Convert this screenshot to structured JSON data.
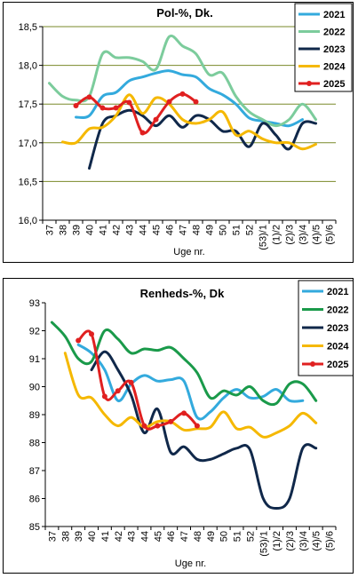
{
  "chart_data": [
    {
      "type": "line",
      "title": "Pol-%, Dk.",
      "xlabel": "Uge nr.",
      "ylabel": "",
      "ylim": [
        16.0,
        18.5
      ],
      "yticks": [
        "16,0",
        "16,5",
        "17,0",
        "17,5",
        "18,0",
        "18,5"
      ],
      "categories": [
        "37",
        "38",
        "39",
        "40",
        "41",
        "42",
        "43",
        "44",
        "45",
        "46",
        "47",
        "48",
        "49",
        "50",
        "51",
        "52",
        "(53)/1",
        "(1)/2",
        "(2)/3",
        "(3)/4",
        "(4)/5",
        "(5)/6"
      ],
      "grid": true,
      "legend": "top-right",
      "series": [
        {
          "name": "2021",
          "color": "#33aadd",
          "values": [
            null,
            null,
            17.33,
            17.35,
            17.6,
            17.65,
            17.8,
            17.85,
            17.9,
            17.93,
            17.88,
            17.85,
            17.7,
            17.62,
            17.5,
            17.32,
            17.28,
            17.25,
            17.22,
            17.3,
            null,
            null
          ]
        },
        {
          "name": "2022",
          "color": "#7ccc9c",
          "values": [
            17.77,
            17.6,
            17.55,
            17.6,
            18.15,
            18.1,
            18.1,
            18.05,
            17.95,
            18.37,
            18.25,
            18.15,
            17.88,
            17.9,
            17.6,
            17.4,
            17.3,
            17.22,
            17.3,
            17.5,
            17.3,
            null
          ]
        },
        {
          "name": "2023",
          "color": "#10284a",
          "values": [
            null,
            null,
            null,
            16.67,
            17.25,
            17.35,
            17.42,
            17.35,
            17.22,
            17.35,
            17.2,
            17.35,
            17.3,
            17.15,
            17.15,
            16.95,
            17.25,
            17.1,
            16.92,
            17.25,
            17.25,
            null
          ]
        },
        {
          "name": "2024",
          "color": "#f5b800",
          "values": [
            null,
            17.01,
            17.0,
            17.18,
            17.2,
            17.35,
            17.62,
            17.38,
            17.58,
            17.5,
            17.3,
            17.25,
            17.3,
            17.4,
            17.1,
            17.15,
            17.05,
            17.0,
            17.0,
            16.92,
            16.98,
            null
          ]
        },
        {
          "name": "2025",
          "color": "#e02020",
          "values": [
            null,
            null,
            17.48,
            17.59,
            17.45,
            17.45,
            17.52,
            17.13,
            17.3,
            17.53,
            17.63,
            17.53,
            null,
            null,
            null,
            null,
            null,
            null,
            null,
            null,
            null,
            null
          ]
        }
      ]
    },
    {
      "type": "line",
      "title": "Renheds-%, Dk",
      "xlabel": "Uge nr.",
      "ylabel": "",
      "ylim": [
        85,
        93
      ],
      "yticks": [
        "85",
        "86",
        "87",
        "88",
        "89",
        "90",
        "91",
        "92",
        "93"
      ],
      "categories": [
        "37",
        "38",
        "39",
        "40",
        "41",
        "42",
        "43",
        "44",
        "45",
        "46",
        "47",
        "48",
        "49",
        "50",
        "51",
        "52",
        "(53)/1",
        "(1)/2",
        "(2)/3",
        "(3)/4",
        "(4)/5",
        "(5)/6"
      ],
      "grid": false,
      "legend": "top-right",
      "series": [
        {
          "name": "2021",
          "color": "#33aadd",
          "values": [
            null,
            null,
            91.5,
            91.2,
            90.6,
            89.5,
            90.1,
            90.4,
            90.2,
            90.25,
            90.2,
            88.9,
            89.1,
            89.6,
            89.9,
            89.6,
            89.65,
            89.9,
            89.5,
            89.5,
            null,
            null
          ]
        },
        {
          "name": "2022",
          "color": "#1a9a4a",
          "values": [
            92.3,
            91.8,
            91.0,
            90.9,
            92.0,
            91.7,
            91.2,
            91.35,
            91.3,
            91.4,
            91.0,
            90.5,
            89.6,
            89.85,
            89.7,
            90.0,
            89.5,
            89.4,
            90.1,
            90.1,
            89.5,
            null
          ]
        },
        {
          "name": "2023",
          "color": "#10284a",
          "values": [
            null,
            null,
            null,
            90.6,
            91.25,
            90.6,
            89.7,
            88.35,
            89.2,
            87.65,
            87.85,
            87.4,
            87.4,
            87.6,
            87.8,
            87.75,
            86.0,
            85.65,
            86.0,
            87.8,
            87.8,
            null
          ]
        },
        {
          "name": "2024",
          "color": "#f5b800",
          "values": [
            null,
            91.2,
            89.7,
            89.6,
            89.0,
            88.6,
            88.9,
            88.55,
            88.75,
            88.75,
            88.45,
            88.5,
            88.55,
            89.1,
            88.5,
            88.55,
            88.2,
            88.35,
            88.6,
            89.05,
            88.7,
            null
          ]
        },
        {
          "name": "2025",
          "color": "#e02020",
          "values": [
            null,
            null,
            91.65,
            91.88,
            89.65,
            89.85,
            90.15,
            88.6,
            88.6,
            88.75,
            89.05,
            88.6,
            null,
            null,
            null,
            null,
            null,
            null,
            null,
            null,
            null,
            null
          ]
        }
      ]
    }
  ]
}
